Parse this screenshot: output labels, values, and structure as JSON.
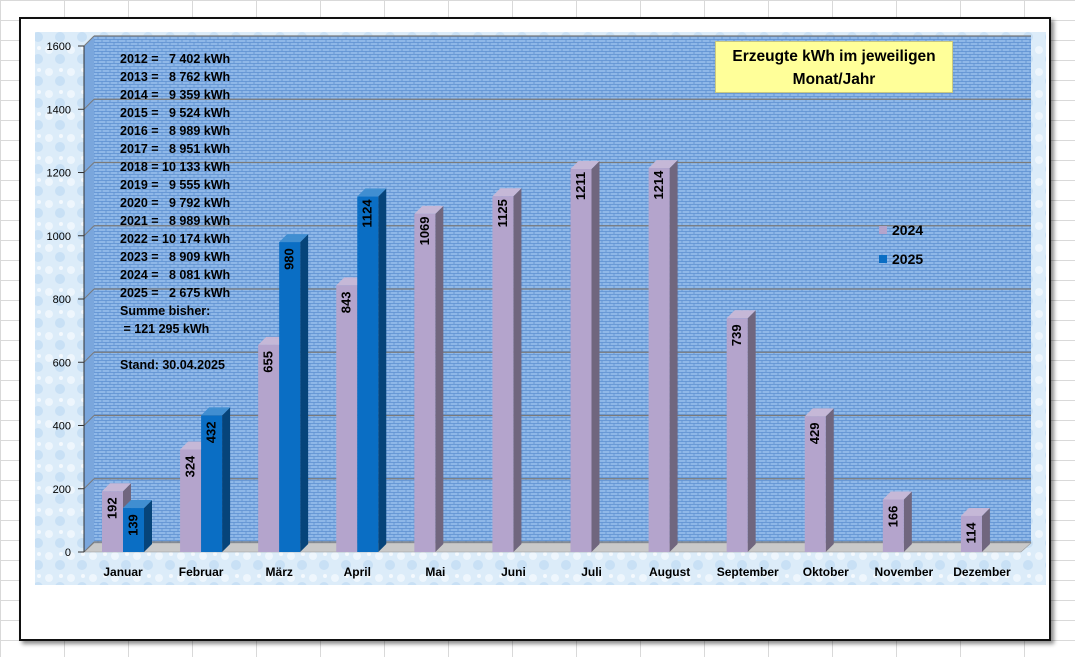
{
  "chart_data": {
    "type": "bar",
    "title_lines": [
      "Erzeugte kWh im jeweiligen",
      "Monat/Jahr"
    ],
    "categories": [
      "Januar",
      "Februar",
      "März",
      "April",
      "Mai",
      "Juni",
      "Juli",
      "August",
      "September",
      "Oktober",
      "November",
      "Dezember"
    ],
    "series": [
      {
        "name": "2024",
        "color": "#b4a4cc",
        "values": [
          192,
          324,
          655,
          843,
          1069,
          1125,
          1211,
          1214,
          739,
          429,
          166,
          114
        ]
      },
      {
        "name": "2025",
        "color": "#0a6ec4",
        "values": [
          139,
          432,
          980,
          1124,
          null,
          null,
          null,
          null,
          null,
          null,
          null,
          null
        ]
      }
    ],
    "ylim": [
      0,
      1600
    ],
    "yticks": [
      "0",
      "200",
      "400",
      "600",
      "800",
      "1000",
      "1200",
      "1400",
      "1600"
    ],
    "grid": true,
    "legend_position": "right",
    "xlabel": "",
    "ylabel": ""
  },
  "annotations": {
    "yearly_totals": [
      "2012 =   7 402 kWh",
      "2013 =   8 762 kWh",
      "2014 =   9 359 kWh",
      "2015 =   9 524 kWh",
      "2016 =   8 989 kWh",
      "2017 =   8 951 kWh",
      "2018 = 10 133 kWh",
      "2019 =   9 555 kWh",
      "2020 =   9 792 kWh",
      "2021 =   8 989 kWh",
      "2022 = 10 174 kWh",
      "2023 =   8 909 kWh",
      "2024 =   8 081 kWh",
      "2025 =   2 675 kWh"
    ],
    "sum_label": "Summe bisher:",
    "sum_value": " = 121 295 kWh",
    "stand": "Stand: 30.04.2025"
  }
}
